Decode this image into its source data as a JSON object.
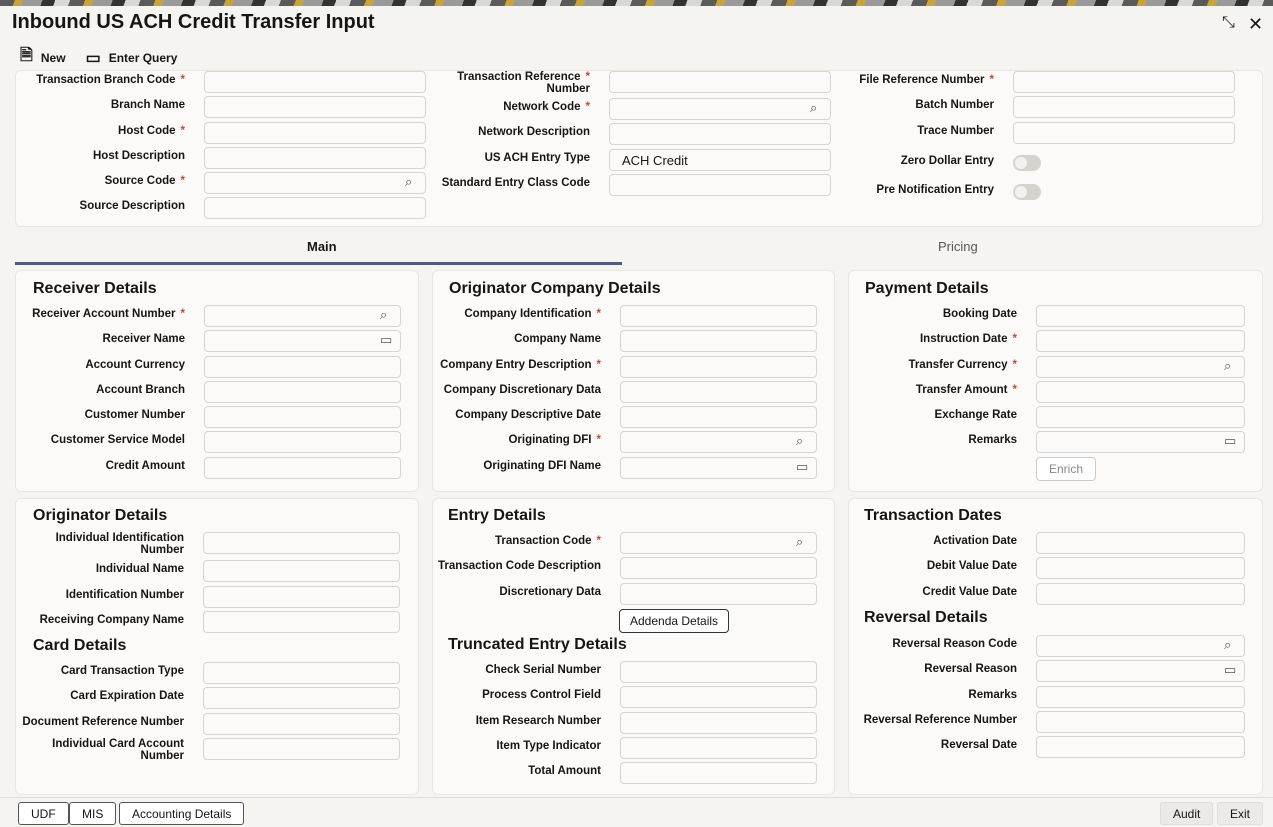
{
  "title": "Inbound US ACH Credit Transfer Input",
  "window": {
    "restore_icon": "collapse-icon",
    "close_icon": "close-icon"
  },
  "toolbar": {
    "new_label": "New",
    "enter_query_label": "Enter Query"
  },
  "header": {
    "col1": [
      {
        "label": "Transaction Branch Code",
        "required": true
      },
      {
        "label": "Branch Name"
      },
      {
        "label": "Host Code",
        "required": true
      },
      {
        "label": "Host Description"
      },
      {
        "label": "Source Code",
        "required": true,
        "icon": "search"
      },
      {
        "label": "Source Description"
      }
    ],
    "col2": [
      {
        "label": "Transaction Reference Number",
        "required": true,
        "label2": "Number",
        "label1": "Transaction Reference"
      },
      {
        "label": "Network Code",
        "required": true,
        "icon": "search"
      },
      {
        "label": "Network Description"
      },
      {
        "label": "US ACH Entry Type",
        "value": "ACH Credit"
      },
      {
        "label": "Standard Entry Class Code"
      }
    ],
    "col3": [
      {
        "label": "File Reference Number",
        "required": true
      },
      {
        "label": "Batch Number"
      },
      {
        "label": "Trace Number"
      },
      {
        "label": "Zero Dollar Entry",
        "toggle": true,
        "on": false
      },
      {
        "label": "Pre Notification Entry",
        "toggle": true,
        "on": false
      }
    ]
  },
  "tabs": [
    {
      "label": "Main",
      "active": true
    },
    {
      "label": "Pricing",
      "active": false
    }
  ],
  "sections": {
    "receiver": {
      "title": "Receiver Details",
      "fields": [
        {
          "label": "Receiver Account Number",
          "required": true,
          "icon": "search"
        },
        {
          "label": "Receiver Name",
          "icon": "comment"
        },
        {
          "label": "Account Currency"
        },
        {
          "label": "Account Branch"
        },
        {
          "label": "Customer Number"
        },
        {
          "label": "Customer Service Model"
        },
        {
          "label": "Credit Amount"
        }
      ]
    },
    "originator_company": {
      "title": "Originator Company Details",
      "fields": [
        {
          "label": "Company Identification",
          "required": true
        },
        {
          "label": "Company Name"
        },
        {
          "label": "Company Entry Description",
          "required": true
        },
        {
          "label": "Company Discretionary Data"
        },
        {
          "label": "Company Descriptive Date"
        },
        {
          "label": "Originating DFI",
          "required": true,
          "icon": "search"
        },
        {
          "label": "Originating DFI Name",
          "icon": "comment"
        }
      ]
    },
    "payment": {
      "title": "Payment Details",
      "fields": [
        {
          "label": "Booking Date"
        },
        {
          "label": "Instruction Date",
          "required": true
        },
        {
          "label": "Transfer Currency",
          "required": true,
          "icon": "search"
        },
        {
          "label": "Transfer Amount",
          "required": true
        },
        {
          "label": "Exchange Rate"
        },
        {
          "label": "Remarks",
          "icon": "comment"
        }
      ],
      "enrich_label": "Enrich"
    },
    "originator": {
      "title": "Originator Details",
      "fields": [
        {
          "label": "Individual Identification Number",
          "label1": "Individual Identification",
          "label2": "Number"
        },
        {
          "label": "Individual Name"
        },
        {
          "label": "Identification Number"
        },
        {
          "label": "Receiving Company Name"
        }
      ]
    },
    "card": {
      "title": "Card Details",
      "fields": [
        {
          "label": "Card Transaction Type"
        },
        {
          "label": "Card Expiration Date"
        },
        {
          "label": "Document Reference Number"
        },
        {
          "label": "Individual Card Account Number",
          "label1": "Individual Card Account",
          "label2": "Number"
        }
      ]
    },
    "entry": {
      "title": "Entry Details",
      "fields": [
        {
          "label": "Transaction Code",
          "required": true,
          "icon": "search"
        },
        {
          "label": "Transaction Code Description"
        },
        {
          "label": "Discretionary Data"
        }
      ],
      "addenda_label": "Addenda Details"
    },
    "truncated": {
      "title": "Truncated Entry Details",
      "fields": [
        {
          "label": "Check Serial Number"
        },
        {
          "label": "Process Control Field"
        },
        {
          "label": "Item Research Number"
        },
        {
          "label": "Item Type Indicator"
        },
        {
          "label": "Total Amount"
        }
      ]
    },
    "transaction_dates": {
      "title": "Transaction Dates",
      "fields": [
        {
          "label": "Activation Date"
        },
        {
          "label": "Debit Value Date"
        },
        {
          "label": "Credit Value Date"
        }
      ]
    },
    "reversal": {
      "title": "Reversal Details",
      "fields": [
        {
          "label": "Reversal Reason Code",
          "icon": "search"
        },
        {
          "label": "Reversal Reason",
          "icon": "comment"
        },
        {
          "label": "Remarks"
        },
        {
          "label": "Reversal Reference Number"
        },
        {
          "label": "Reversal Date"
        }
      ]
    }
  },
  "footer": {
    "left": [
      "UDF",
      "MIS",
      "Accounting Details"
    ],
    "right": [
      "Audit",
      "Exit"
    ]
  },
  "colors": {
    "accent_tab": "#4d5b7c",
    "required": "#c74634"
  }
}
